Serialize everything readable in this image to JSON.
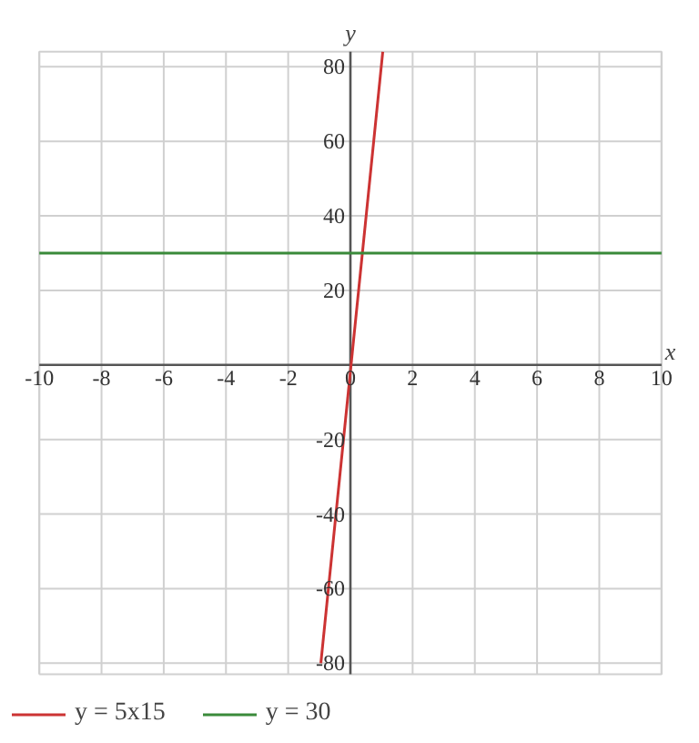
{
  "chart_data": {
    "type": "line",
    "xlabel": "x",
    "ylabel": "y",
    "xlim": [
      -10,
      10
    ],
    "ylim": [
      -83,
      84
    ],
    "xticks": [
      -10,
      -8,
      -6,
      -4,
      -2,
      0,
      2,
      4,
      6,
      8,
      10
    ],
    "yticks": [
      -80,
      -60,
      -40,
      -20,
      20,
      40,
      60,
      80
    ],
    "grid": true,
    "legend": "bottom",
    "series": [
      {
        "name": "y = 5x15",
        "color": "#cc3333",
        "x": [
          -0.95,
          1.04
        ],
        "values": [
          -80,
          84
        ]
      },
      {
        "name": "y = 30",
        "color": "#3a8a3a",
        "x": [
          -10,
          10
        ],
        "values": [
          30,
          30
        ]
      }
    ]
  }
}
